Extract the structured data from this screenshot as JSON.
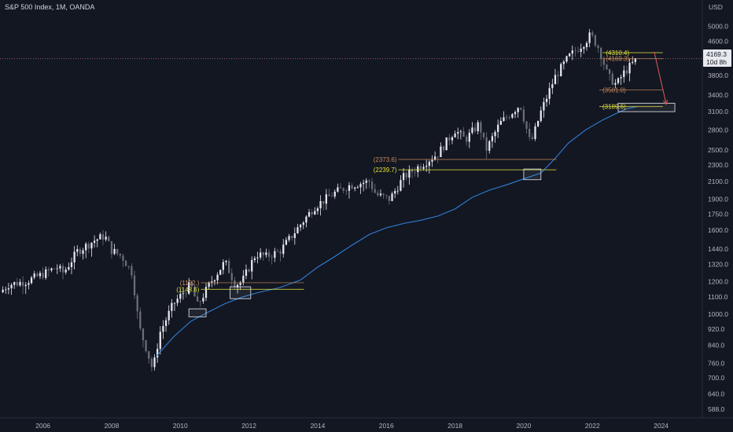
{
  "header": {
    "title": "S&P 500 Index, 1M, OANDA",
    "currency": "USD"
  },
  "price_badge": {
    "price": "4169.3",
    "countdown": "10d 8h"
  },
  "colors": {
    "background": "#131722",
    "candle_up": "#e7e9ee",
    "candle_down": "#6b6f79",
    "ma": "#2f7fd6",
    "yellow": "#e0e03a",
    "brown": "#c9895a",
    "red": "#e05a5a",
    "box": "#d1d4dc"
  },
  "chart_data": {
    "type": "candlestick",
    "title": "S&P 500 Index, 1M, OANDA",
    "y_scale": "log",
    "ylim": [
      560,
      5300
    ],
    "xlim": [
      2004.75,
      2025.2
    ],
    "grid": false,
    "y_ticks": [
      "588.0",
      "640.0",
      "700.0",
      "760.0",
      "840.0",
      "920.0",
      "1000.0",
      "1100.0",
      "1200.0",
      "1320.0",
      "1440.0",
      "1600.0",
      "1750.0",
      "1900.0",
      "2100.0",
      "2300.0",
      "2500.0",
      "2800.0",
      "3100.0",
      "3400.0",
      "3800.0",
      "4200.0",
      "4600.0",
      "5000.0"
    ],
    "x_ticks": [
      "2006",
      "2008",
      "2010",
      "2012",
      "2014",
      "2016",
      "2018",
      "2020",
      "2022",
      "2024"
    ],
    "close_path": [
      [
        2004.75,
        1130
      ],
      [
        2005.0,
        1180
      ],
      [
        2005.5,
        1200
      ],
      [
        2006.0,
        1250
      ],
      [
        2006.4,
        1300
      ],
      [
        2006.6,
        1260
      ],
      [
        2007.0,
        1420
      ],
      [
        2007.5,
        1510
      ],
      [
        2007.8,
        1550
      ],
      [
        2008.0,
        1430
      ],
      [
        2008.3,
        1380
      ],
      [
        2008.6,
        1260
      ],
      [
        2008.8,
        930
      ],
      [
        2009.0,
        830
      ],
      [
        2009.2,
        730
      ],
      [
        2009.4,
        900
      ],
      [
        2009.8,
        1060
      ],
      [
        2010.3,
        1180
      ],
      [
        2010.5,
        1050
      ],
      [
        2010.9,
        1200
      ],
      [
        2011.3,
        1340
      ],
      [
        2011.6,
        1180
      ],
      [
        2011.8,
        1200
      ],
      [
        2012.2,
        1400
      ],
      [
        2012.5,
        1380
      ],
      [
        2012.9,
        1420
      ],
      [
        2013.5,
        1650
      ],
      [
        2013.9,
        1820
      ],
      [
        2014.5,
        1970
      ],
      [
        2014.9,
        2050
      ],
      [
        2015.5,
        2100
      ],
      [
        2015.7,
        1950
      ],
      [
        2016.1,
        1900
      ],
      [
        2016.5,
        2150
      ],
      [
        2017.0,
        2300
      ],
      [
        2017.5,
        2450
      ],
      [
        2018.0,
        2800
      ],
      [
        2018.3,
        2650
      ],
      [
        2018.7,
        2900
      ],
      [
        2018.9,
        2500
      ],
      [
        2019.3,
        2900
      ],
      [
        2019.9,
        3230
      ],
      [
        2020.2,
        2580
      ],
      [
        2020.5,
        3100
      ],
      [
        2020.9,
        3750
      ],
      [
        2021.3,
        4200
      ],
      [
        2021.8,
        4600
      ],
      [
        2021.95,
        4770
      ],
      [
        2022.2,
        4400
      ],
      [
        2022.45,
        3780
      ],
      [
        2022.7,
        3600
      ],
      [
        2022.9,
        3840
      ],
      [
        2023.1,
        4000
      ],
      [
        2023.3,
        4169
      ]
    ],
    "ma_path": [
      [
        2009.3,
        790
      ],
      [
        2009.8,
        880
      ],
      [
        2010.3,
        960
      ],
      [
        2010.8,
        1010
      ],
      [
        2011.3,
        1060
      ],
      [
        2011.8,
        1100
      ],
      [
        2012.3,
        1130
      ],
      [
        2012.9,
        1160
      ],
      [
        2013.5,
        1210
      ],
      [
        2014.0,
        1300
      ],
      [
        2014.5,
        1380
      ],
      [
        2015.0,
        1470
      ],
      [
        2015.5,
        1560
      ],
      [
        2016.0,
        1620
      ],
      [
        2016.5,
        1660
      ],
      [
        2017.0,
        1690
      ],
      [
        2017.5,
        1730
      ],
      [
        2018.0,
        1800
      ],
      [
        2018.5,
        1920
      ],
      [
        2019.0,
        2000
      ],
      [
        2019.5,
        2060
      ],
      [
        2020.0,
        2130
      ],
      [
        2020.5,
        2200
      ],
      [
        2020.9,
        2380
      ],
      [
        2021.3,
        2600
      ],
      [
        2021.8,
        2800
      ],
      [
        2022.3,
        2960
      ],
      [
        2022.7,
        3070
      ],
      [
        2023.0,
        3150
      ],
      [
        2023.3,
        3190
      ]
    ],
    "levels": [
      {
        "label": "(1192.)",
        "value": 1192,
        "color": "brown",
        "x0": 2010.6,
        "x1": 2013.6
      },
      {
        "label": "(1148.6)",
        "value": 1148.6,
        "color": "yellow",
        "x0": 2010.6,
        "x1": 2013.6
      },
      {
        "label": "(2373.6)",
        "value": 2373.6,
        "color": "brown",
        "x0": 2016.35,
        "x1": 2020.95
      },
      {
        "label": "(2239.7)",
        "value": 2239.7,
        "color": "yellow",
        "x0": 2016.35,
        "x1": 2020.95
      },
      {
        "label": "(3501.0)",
        "value": 3501,
        "color": "brown",
        "x0": 2022.2,
        "x1": 2024.05
      },
      {
        "label": "(3189.6)",
        "value": 3189.6,
        "color": "yellow",
        "x0": 2022.2,
        "x1": 2024.05
      },
      {
        "label": "(4310.4)",
        "value": 4310.4,
        "color": "yellow",
        "x0": 2022.3,
        "x1": 2024.05
      },
      {
        "label": "(4169.3)",
        "value": 4169.3,
        "color": "brown",
        "x0": 2022.3,
        "x1": 2024.05
      }
    ],
    "boxes": [
      {
        "x0": 2010.25,
        "x1": 2010.75,
        "y0": 985,
        "y1": 1030
      },
      {
        "x0": 2011.45,
        "x1": 2012.05,
        "y0": 1090,
        "y1": 1165
      },
      {
        "x0": 2020.0,
        "x1": 2020.5,
        "y0": 2120,
        "y1": 2250
      },
      {
        "x0": 2022.75,
        "x1": 2024.4,
        "y0": 3100,
        "y1": 3250
      }
    ],
    "arrow": {
      "from": [
        2023.8,
        4330
      ],
      "to": [
        2024.15,
        3230
      ]
    }
  }
}
